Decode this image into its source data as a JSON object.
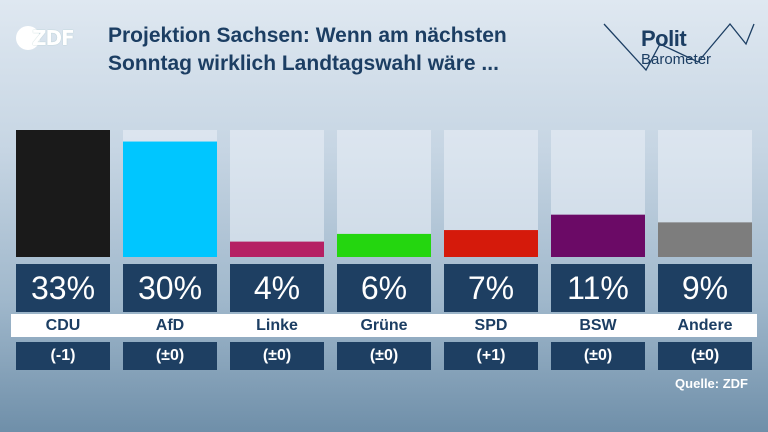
{
  "brand": {
    "logo_text": "ZDF"
  },
  "header": {
    "title_line1": "Projektion Sachsen: Wenn am nächsten",
    "title_line2": "Sonntag wirklich Landtagswahl wäre ..."
  },
  "politbarometer": {
    "line1": "Polit",
    "line2": "Barometer"
  },
  "chart_data": {
    "type": "bar",
    "categories": [
      "CDU",
      "AfD",
      "Linke",
      "Grüne",
      "SPD",
      "BSW",
      "Andere"
    ],
    "values": [
      33,
      30,
      4,
      6,
      7,
      11,
      9
    ],
    "value_labels": [
      "33%",
      "30%",
      "4%",
      "6%",
      "7%",
      "11%",
      "9%"
    ],
    "changes": [
      "(-1)",
      "(±0)",
      "(±0)",
      "(±0)",
      "(+1)",
      "(±0)",
      "(±0)"
    ],
    "colors": [
      "#1a1a1a",
      "#00c6ff",
      "#b52063",
      "#24d60f",
      "#d51a0b",
      "#6b0a66",
      "#7d7d7d"
    ],
    "ylim": [
      0,
      33
    ]
  },
  "footer": {
    "source": "Quelle: ZDF"
  }
}
